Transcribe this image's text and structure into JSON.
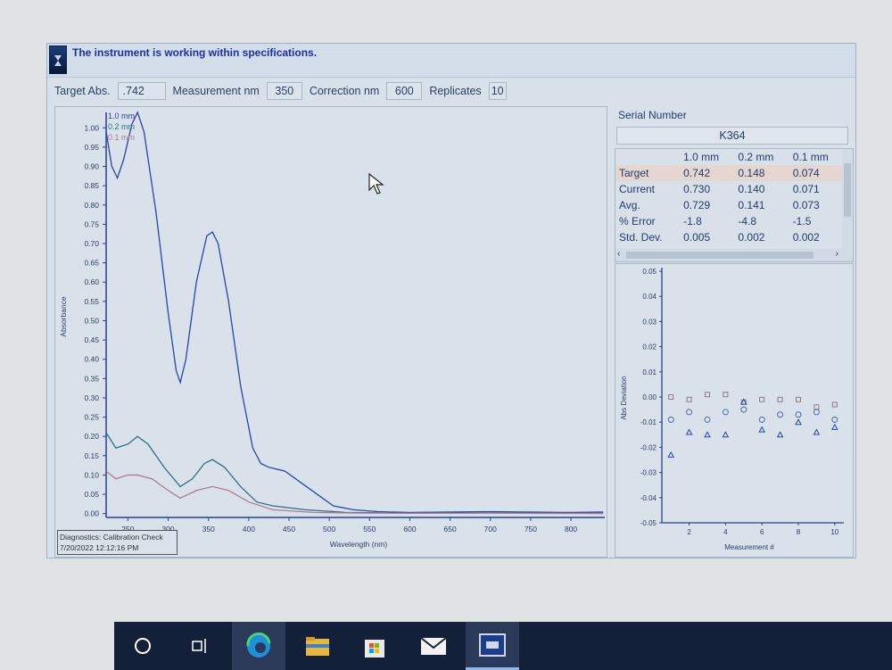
{
  "status_message": "The instrument is working within specifications.",
  "params": {
    "target_abs_label": "Target Abs.",
    "target_abs": ".742",
    "measurement_nm_label": "Measurement nm",
    "measurement_nm": "350",
    "correction_nm_label": "Correction nm",
    "correction_nm": "600",
    "replicates_label": "Replicates",
    "replicates": "10"
  },
  "serial": {
    "label": "Serial Number",
    "value": "K364"
  },
  "results_table": {
    "columns": [
      "",
      "1.0 mm",
      "0.2 mm",
      "0.1 mm"
    ],
    "rows": [
      [
        "Target",
        "0.742",
        "0.148",
        "0.074"
      ],
      [
        "Current",
        "0.730",
        "0.140",
        "0.071"
      ],
      [
        "Avg.",
        "0.729",
        "0.141",
        "0.073"
      ],
      [
        "% Error",
        "-1.8",
        "-4.8",
        "-1.5"
      ],
      [
        "Std. Dev.",
        "0.005",
        "0.002",
        "0.002"
      ]
    ]
  },
  "diagnostics": {
    "line1": "Diagnostics: Calibration Check",
    "line2": "7/20/2022 12:12:16 PM"
  },
  "colors": {
    "s1": "#2a45a8",
    "s2": "#2f6f86",
    "s3": "#b07a94"
  },
  "chart_data": [
    {
      "type": "line",
      "xlabel": "Wavelength (nm)",
      "ylabel": "Absorbance",
      "xlim": [
        223,
        842
      ],
      "ylim": [
        -0.01,
        1.04
      ],
      "xticks": [
        250,
        300,
        350,
        400,
        450,
        500,
        550,
        600,
        650,
        700,
        750,
        800
      ],
      "yticks": [
        0,
        0.05,
        0.1,
        0.15,
        0.2,
        0.25,
        0.3,
        0.35,
        0.4,
        0.45,
        0.5,
        0.55,
        0.6,
        0.65,
        0.7,
        0.75,
        0.8,
        0.85,
        0.9,
        0.95,
        1.0
      ],
      "legend": "top-left",
      "series": [
        {
          "name": "1.0 mm",
          "x": [
            223,
            230,
            237,
            245,
            255,
            262,
            270,
            285,
            300,
            310,
            315,
            322,
            335,
            348,
            355,
            362,
            375,
            390,
            405,
            415,
            425,
            445,
            465,
            485,
            505,
            530,
            560,
            600,
            700,
            800,
            840
          ],
          "y": [
            0.99,
            0.9,
            0.87,
            0.92,
            1.01,
            1.04,
            0.99,
            0.78,
            0.52,
            0.37,
            0.34,
            0.4,
            0.6,
            0.72,
            0.73,
            0.7,
            0.55,
            0.33,
            0.17,
            0.13,
            0.12,
            0.11,
            0.08,
            0.05,
            0.02,
            0.01,
            0.005,
            0.003,
            0.005,
            0.003,
            0.004
          ]
        },
        {
          "name": "0.2 mm",
          "x": [
            223,
            235,
            250,
            262,
            275,
            295,
            315,
            330,
            345,
            355,
            370,
            390,
            410,
            430,
            470,
            520,
            600,
            700,
            840
          ],
          "y": [
            0.21,
            0.17,
            0.18,
            0.2,
            0.18,
            0.12,
            0.07,
            0.09,
            0.13,
            0.14,
            0.12,
            0.07,
            0.03,
            0.02,
            0.01,
            0.003,
            0.001,
            0.002,
            0.001
          ]
        },
        {
          "name": "0.1 mm",
          "x": [
            223,
            235,
            250,
            262,
            280,
            300,
            315,
            335,
            355,
            375,
            400,
            430,
            480,
            550,
            700,
            840
          ],
          "y": [
            0.11,
            0.09,
            0.1,
            0.1,
            0.09,
            0.06,
            0.04,
            0.06,
            0.07,
            0.06,
            0.03,
            0.01,
            0.003,
            0.001,
            0.001,
            0.0
          ]
        }
      ]
    },
    {
      "type": "scatter",
      "xlabel": "Measurement #",
      "ylabel": "Abs Deviation",
      "xlim": [
        0.5,
        10.5
      ],
      "ylim": [
        -0.05,
        0.05
      ],
      "xticks": [
        2,
        4,
        6,
        8,
        10
      ],
      "yticks": [
        -0.05,
        -0.04,
        -0.03,
        -0.02,
        -0.01,
        0.0,
        0.01,
        0.02,
        0.03,
        0.04,
        0.05
      ],
      "x": [
        1,
        2,
        3,
        4,
        5,
        6,
        7,
        8,
        9,
        10
      ],
      "series": [
        {
          "marker": "square",
          "y": [
            0.0,
            -0.001,
            0.001,
            0.001,
            -0.002,
            -0.001,
            -0.001,
            -0.001,
            -0.004,
            -0.003
          ]
        },
        {
          "marker": "circle",
          "y": [
            -0.009,
            -0.006,
            -0.009,
            -0.006,
            -0.005,
            -0.009,
            -0.007,
            -0.007,
            -0.006,
            -0.009
          ]
        },
        {
          "marker": "triangle",
          "y": [
            -0.023,
            -0.014,
            -0.015,
            -0.015,
            -0.002,
            -0.013,
            -0.015,
            -0.01,
            -0.014,
            -0.012
          ]
        }
      ]
    }
  ],
  "taskbar": {
    "icons": [
      "search-icon",
      "task-view-icon",
      "edge-icon",
      "file-explorer-icon",
      "store-icon",
      "mail-icon",
      "instrument-app-icon"
    ]
  }
}
